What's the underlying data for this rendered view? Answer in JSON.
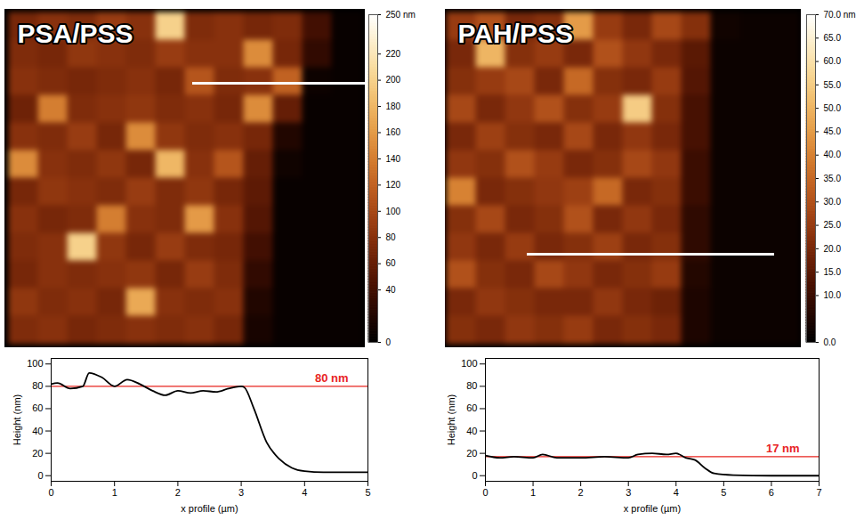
{
  "chart_data": [
    {
      "type": "heatmap",
      "title": "PSA/PSS",
      "color_range": [
        0,
        250
      ],
      "color_ticks": [
        {
          "value": 250,
          "label": "250 nm"
        },
        220,
        200,
        180,
        160,
        140,
        120,
        100,
        80,
        60,
        40,
        0
      ],
      "cells": [
        [
          70,
          80,
          75,
          90,
          80,
          200,
          75,
          80,
          70,
          75,
          40,
          5
        ],
        [
          75,
          70,
          85,
          80,
          75,
          90,
          80,
          80,
          150,
          70,
          30,
          5
        ],
        [
          80,
          75,
          70,
          75,
          80,
          70,
          110,
          75,
          80,
          120,
          8,
          5
        ],
        [
          65,
          140,
          75,
          80,
          85,
          75,
          80,
          70,
          150,
          60,
          5,
          5
        ],
        [
          80,
          75,
          90,
          70,
          150,
          85,
          75,
          80,
          70,
          20,
          5,
          5
        ],
        [
          150,
          80,
          75,
          85,
          70,
          180,
          80,
          110,
          60,
          10,
          5,
          5
        ],
        [
          70,
          85,
          80,
          75,
          90,
          75,
          85,
          70,
          55,
          5,
          5,
          5
        ],
        [
          80,
          70,
          75,
          140,
          80,
          75,
          160,
          80,
          50,
          5,
          5,
          5
        ],
        [
          75,
          80,
          200,
          85,
          70,
          90,
          75,
          70,
          40,
          5,
          5,
          5
        ],
        [
          70,
          80,
          75,
          80,
          85,
          70,
          90,
          75,
          30,
          5,
          5,
          5
        ],
        [
          85,
          75,
          80,
          70,
          170,
          80,
          75,
          80,
          20,
          5,
          5,
          5
        ],
        [
          75,
          80,
          70,
          75,
          80,
          75,
          80,
          70,
          15,
          5,
          5,
          5
        ]
      ]
    },
    {
      "type": "heatmap",
      "title": "PAH/PSS",
      "color_range": [
        0,
        70
      ],
      "color_ticks": [
        {
          "value": 70,
          "label": "70.0 nm"
        },
        {
          "value": 65,
          "label": "65.0"
        },
        {
          "value": 60,
          "label": "60.0"
        },
        {
          "value": 55,
          "label": "55.0"
        },
        {
          "value": 50,
          "label": "50.0"
        },
        {
          "value": 45,
          "label": "45.0"
        },
        {
          "value": 40,
          "label": "40.0"
        },
        {
          "value": 35,
          "label": "35.0"
        },
        {
          "value": 30,
          "label": "30.0"
        },
        {
          "value": 25,
          "label": "25.0"
        },
        {
          "value": 20,
          "label": "20.0"
        },
        {
          "value": 15,
          "label": "15.0"
        },
        {
          "value": 10,
          "label": "10.0"
        },
        {
          "value": 0,
          "label": "0.0"
        }
      ],
      "cells": [
        [
          25,
          30,
          20,
          22,
          45,
          25,
          20,
          28,
          22,
          3,
          2,
          2
        ],
        [
          20,
          50,
          22,
          25,
          20,
          30,
          24,
          20,
          15,
          2,
          2,
          2
        ],
        [
          22,
          25,
          28,
          20,
          35,
          22,
          20,
          25,
          14,
          2,
          2,
          2
        ],
        [
          28,
          20,
          24,
          30,
          22,
          25,
          55,
          22,
          12,
          2,
          2,
          2
        ],
        [
          20,
          26,
          22,
          20,
          28,
          20,
          24,
          20,
          12,
          2,
          2,
          2
        ],
        [
          24,
          22,
          30,
          25,
          20,
          22,
          28,
          24,
          10,
          2,
          2,
          2
        ],
        [
          40,
          20,
          22,
          24,
          26,
          35,
          20,
          22,
          10,
          2,
          2,
          2
        ],
        [
          22,
          28,
          20,
          22,
          30,
          20,
          24,
          20,
          8,
          2,
          2,
          2
        ],
        [
          24,
          20,
          25,
          20,
          22,
          26,
          20,
          22,
          8,
          2,
          2,
          2
        ],
        [
          30,
          22,
          20,
          28,
          24,
          20,
          22,
          25,
          6,
          2,
          2,
          2
        ],
        [
          20,
          24,
          22,
          20,
          20,
          24,
          20,
          18,
          5,
          2,
          2,
          2
        ],
        [
          22,
          20,
          24,
          22,
          25,
          20,
          22,
          20,
          5,
          2,
          2,
          2
        ]
      ]
    },
    {
      "type": "line",
      "xlabel": "x profile (µm)",
      "ylabel": "Height (nm)",
      "color": "#000000",
      "x": [
        0,
        0.1,
        0.3,
        0.5,
        0.6,
        0.8,
        1,
        1.2,
        1.4,
        1.6,
        1.8,
        2,
        2.2,
        2.4,
        2.6,
        2.8,
        3,
        3.05,
        3.2,
        3.4,
        3.6,
        3.8,
        4,
        4.3,
        4.6,
        5
      ],
      "values": [
        82,
        83,
        78,
        80,
        92,
        88,
        80,
        86,
        82,
        76,
        72,
        76,
        74,
        76,
        75,
        78,
        80,
        79,
        60,
        30,
        15,
        7,
        4,
        3,
        3,
        3
      ],
      "xlim": [
        0,
        5
      ],
      "xticks": [
        0,
        1,
        2,
        3,
        4,
        5
      ],
      "ylim": [
        -5,
        105
      ],
      "yticks": [
        0,
        20,
        40,
        60,
        80,
        100
      ],
      "reference": {
        "value": 80,
        "label": "80 nm",
        "color": "#e8251f"
      }
    },
    {
      "type": "line",
      "xlabel": "x profile (µm)",
      "ylabel": "Height (nm)",
      "color": "#000000",
      "x": [
        0,
        0.3,
        0.6,
        1,
        1.2,
        1.5,
        2,
        2.5,
        3,
        3.2,
        3.5,
        3.8,
        4,
        4.2,
        4.4,
        4.6,
        4.8,
        5.2,
        6,
        7
      ],
      "values": [
        18,
        16,
        17,
        16,
        19,
        16,
        16,
        17,
        16,
        19,
        20,
        19,
        20,
        16,
        14,
        7,
        2,
        0.5,
        0,
        0
      ],
      "xlim": [
        0,
        7
      ],
      "xticks": [
        0,
        1,
        2,
        3,
        4,
        5,
        6,
        7
      ],
      "ylim": [
        -5,
        105
      ],
      "yticks": [
        0,
        20,
        40,
        60,
        80,
        100
      ],
      "reference": {
        "value": 17,
        "label": "17 nm",
        "color": "#e8251f"
      }
    }
  ]
}
